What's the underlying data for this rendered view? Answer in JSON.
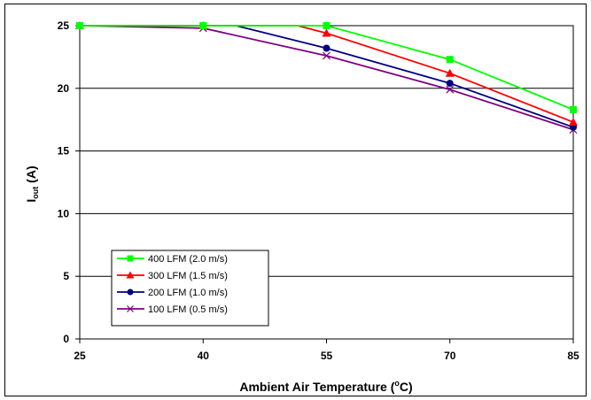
{
  "chart_data": {
    "type": "line",
    "xlabel": "Ambient Air Temperature (",
    "xlabel_sup": "o",
    "xlabel_unit": "C)",
    "ylabel": "Iout (A)",
    "ylabel_main": "I",
    "ylabel_sub": "out",
    "ylabel_unit": " (A)",
    "xlim": [
      25,
      85
    ],
    "ylim": [
      0,
      25
    ],
    "x_ticks": [
      "25",
      "40",
      "55",
      "70",
      "85"
    ],
    "y_ticks": [
      "0",
      "5",
      "10",
      "15",
      "20",
      "25"
    ],
    "grid": "horizontal",
    "legend_position": "lower-left",
    "series": [
      {
        "name": "400 LFM (2.0 m/s)",
        "color": "#00ff00",
        "marker": "square",
        "points": [
          [
            25,
            25
          ],
          [
            40,
            25
          ],
          [
            55,
            25
          ],
          [
            70,
            22.3
          ],
          [
            85,
            18.3
          ]
        ]
      },
      {
        "name": "300 LFM (1.5 m/s)",
        "color": "#ff0000",
        "marker": "triangle",
        "points": [
          [
            25,
            25
          ],
          [
            40,
            25
          ],
          [
            51.5,
            25
          ],
          [
            55,
            24.4
          ],
          [
            70,
            21.2
          ],
          [
            85,
            17.3
          ]
        ]
      },
      {
        "name": "200 LFM (1.0 m/s)",
        "color": "#000080",
        "marker": "circle",
        "points": [
          [
            25,
            25
          ],
          [
            40,
            25
          ],
          [
            44,
            25
          ],
          [
            55,
            23.2
          ],
          [
            70,
            20.4
          ],
          [
            85,
            16.9
          ]
        ]
      },
      {
        "name": "100 LFM (0.5 m/s)",
        "color": "#800080",
        "marker": "x",
        "points": [
          [
            25,
            25
          ],
          [
            40,
            24.8
          ],
          [
            55,
            22.6
          ],
          [
            70,
            19.9
          ],
          [
            85,
            16.7
          ]
        ]
      }
    ]
  }
}
